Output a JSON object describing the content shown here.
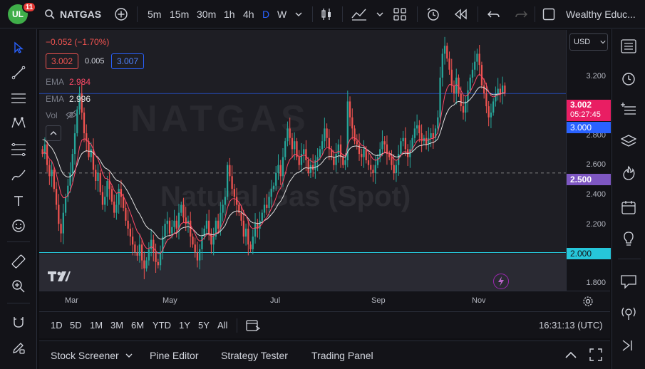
{
  "header": {
    "notification_count": "11",
    "logo_text": "UL",
    "symbol": "NATGAS",
    "intervals": [
      "5m",
      "15m",
      "30m",
      "1h",
      "4h",
      "D",
      "W"
    ],
    "active_interval": "D",
    "account_name": "Wealthy Educ..."
  },
  "legend": {
    "change": "−0.052 (−1.70%)",
    "bid": "3.002",
    "spread": "0.005",
    "ask": "3.007",
    "ema1_label": "EMA",
    "ema1_value": "2.984",
    "ema2_label": "EMA",
    "ema2_value": "2.996",
    "vol_label": "Vol"
  },
  "watermark": {
    "title": "Natural Gas (Spot)",
    "symbol": "NATGAS"
  },
  "price_axis": {
    "currency": "USD",
    "labels": [
      "3.200",
      "2.800",
      "2.600",
      "2.400",
      "2.200",
      "1.800"
    ],
    "current_price": "3.002",
    "countdown": "05:27:45",
    "tag_blue": "3.000",
    "tag_purple": "2.500",
    "tag_teal": "2.000"
  },
  "time_axis": {
    "labels": [
      "Mar",
      "May",
      "Jul",
      "Sep",
      "Nov"
    ]
  },
  "ranges": [
    "1D",
    "5D",
    "1M",
    "3M",
    "6M",
    "YTD",
    "1Y",
    "5Y",
    "All"
  ],
  "clock": "16:31:13 (UTC)",
  "bottom_tabs": [
    "Stock Screener",
    "Pine Editor",
    "Strategy Tester",
    "Trading Panel"
  ],
  "colors": {
    "up": "#26a69a",
    "down": "#ef5350",
    "ema_fast": "#ff4a68",
    "ema_slow": "#e0e0e0",
    "price_line": "#e91e63",
    "level_teal": "#26c6da",
    "level_purple": "#7e57c2",
    "level_blue": "#2962ff",
    "accent": "#2962ff"
  },
  "chart_data": {
    "type": "candlestick",
    "y_range": [
      1.76,
      3.4
    ],
    "levels": [
      3.0,
      2.5,
      2.0
    ],
    "closes": [
      2.62,
      2.68,
      2.55,
      2.48,
      2.52,
      2.4,
      2.3,
      2.18,
      2.12,
      2.25,
      2.35,
      2.42,
      2.5,
      2.62,
      2.75,
      2.9,
      3.0,
      2.88,
      2.75,
      2.7,
      2.6,
      2.65,
      2.52,
      2.45,
      2.5,
      2.38,
      2.3,
      2.35,
      2.45,
      2.4,
      2.32,
      2.25,
      2.3,
      2.4,
      2.35,
      2.28,
      2.2,
      2.15,
      2.1,
      2.05,
      2.0,
      1.98,
      2.05,
      1.95,
      1.9,
      1.95,
      2.02,
      2.08,
      2.0,
      1.94,
      1.92,
      2.0,
      2.1,
      2.18,
      2.2,
      2.12,
      2.16,
      2.2,
      2.15,
      2.25,
      2.3,
      2.22,
      2.18,
      2.2,
      2.1,
      2.05,
      2.0,
      1.95,
      2.02,
      2.1,
      2.15,
      2.2,
      2.12,
      2.05,
      2.1,
      2.2,
      2.15,
      2.25,
      2.3,
      2.35,
      2.55,
      2.48,
      2.4,
      2.35,
      2.3,
      2.25,
      2.2,
      2.1,
      2.15,
      2.05,
      2.02,
      2.1,
      2.18,
      2.15,
      2.2,
      2.25,
      2.3,
      2.28,
      2.35,
      2.4,
      2.42,
      2.5,
      2.55,
      2.48,
      2.6,
      2.7,
      2.78,
      2.72,
      2.65,
      2.7,
      2.6,
      2.55,
      2.62,
      2.65,
      2.58,
      2.5,
      2.55,
      2.52,
      2.58,
      2.6,
      2.65,
      2.7,
      2.78,
      2.72,
      2.65,
      2.6,
      2.55,
      2.62,
      2.68,
      2.6,
      2.55,
      2.58,
      2.95,
      2.85,
      2.78,
      2.7,
      2.68,
      2.62,
      2.6,
      2.65,
      2.58,
      2.55,
      2.52,
      2.5,
      2.55,
      2.6,
      2.65,
      2.7,
      2.68,
      2.62,
      2.6,
      2.55,
      2.5,
      2.55,
      2.62,
      2.7,
      2.72,
      2.65,
      2.6,
      2.65,
      2.72,
      2.78,
      2.8,
      2.75,
      2.7,
      2.72,
      2.68,
      2.72,
      2.75,
      2.72,
      2.78,
      2.85,
      3.1,
      3.25,
      3.3,
      3.22,
      3.15,
      3.05,
      3.0,
      3.1,
      3.0,
      2.92,
      2.88,
      2.95,
      3.02,
      3.1,
      3.15,
      3.2,
      3.25,
      3.18,
      3.05,
      3.0,
      2.92,
      2.85,
      2.88,
      2.95,
      3.0,
      3.03,
      3.0,
      3.05,
      3.002
    ]
  }
}
